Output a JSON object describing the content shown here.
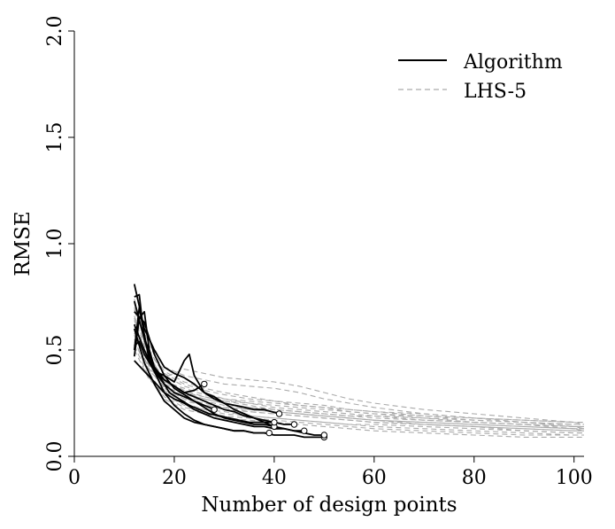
{
  "chart_data": {
    "type": "line",
    "title": "",
    "xlabel": "Number of design points",
    "ylabel": "RMSE",
    "xlim": [
      0,
      102
    ],
    "ylim": [
      0,
      2.0
    ],
    "x_ticks": [
      0,
      20,
      40,
      60,
      80,
      100
    ],
    "x_tick_labels": [
      "0",
      "20",
      "40",
      "60",
      "80",
      "100"
    ],
    "y_ticks": [
      0.0,
      0.5,
      1.0,
      1.5,
      2.0
    ],
    "y_tick_labels": [
      "0.0",
      "0.5",
      "1.0",
      "1.5",
      "2.0"
    ],
    "grid": false,
    "legend_position": "top-right",
    "legend": [
      {
        "label": "Algorithm",
        "color": "#000000",
        "style": "solid"
      },
      {
        "label": "LHS-5",
        "color": "#aaaaaa",
        "style": "dashed"
      }
    ],
    "series": [
      {
        "name": "LHS-5",
        "group": "lhs",
        "x": [
          12,
          15,
          18,
          22,
          26,
          30,
          35,
          40,
          45,
          50,
          55,
          60,
          70,
          80,
          90,
          100,
          102
        ],
        "y": [
          0.74,
          0.45,
          0.32,
          0.27,
          0.24,
          0.22,
          0.21,
          0.2,
          0.19,
          0.18,
          0.17,
          0.16,
          0.15,
          0.14,
          0.13,
          0.12,
          0.12
        ]
      },
      {
        "name": "LHS-5",
        "group": "lhs",
        "x": [
          12,
          15,
          18,
          22,
          26,
          30,
          35,
          40,
          45,
          50,
          55,
          60,
          70,
          80,
          90,
          100,
          102
        ],
        "y": [
          0.7,
          0.5,
          0.38,
          0.33,
          0.3,
          0.27,
          0.25,
          0.23,
          0.22,
          0.21,
          0.2,
          0.19,
          0.18,
          0.16,
          0.15,
          0.14,
          0.14
        ]
      },
      {
        "name": "LHS-5",
        "group": "lhs",
        "x": [
          12,
          15,
          18,
          22,
          26,
          30,
          35,
          40,
          45,
          50,
          55,
          60,
          70,
          80,
          90,
          100,
          102
        ],
        "y": [
          0.6,
          0.42,
          0.33,
          0.28,
          0.26,
          0.24,
          0.22,
          0.21,
          0.2,
          0.19,
          0.18,
          0.17,
          0.16,
          0.15,
          0.14,
          0.13,
          0.13
        ]
      },
      {
        "name": "LHS-5",
        "group": "lhs",
        "x": [
          12,
          15,
          18,
          22,
          26,
          30,
          35,
          40,
          45,
          50,
          55,
          60,
          70,
          80,
          90,
          100,
          102
        ],
        "y": [
          0.68,
          0.55,
          0.42,
          0.38,
          0.36,
          0.34,
          0.33,
          0.32,
          0.3,
          0.27,
          0.25,
          0.23,
          0.2,
          0.18,
          0.16,
          0.15,
          0.15
        ]
      },
      {
        "name": "LHS-5",
        "group": "lhs",
        "x": [
          12,
          15,
          18,
          22,
          26,
          30,
          35,
          40,
          45,
          50,
          55,
          60,
          70,
          80,
          90,
          100,
          102
        ],
        "y": [
          0.55,
          0.38,
          0.28,
          0.23,
          0.21,
          0.19,
          0.18,
          0.17,
          0.16,
          0.15,
          0.14,
          0.13,
          0.12,
          0.11,
          0.1,
          0.1,
          0.1
        ]
      },
      {
        "name": "LHS-5",
        "group": "lhs",
        "x": [
          12,
          15,
          18,
          22,
          26,
          30,
          35,
          40,
          45,
          50,
          55,
          60,
          70,
          80,
          90,
          100,
          102
        ],
        "y": [
          0.72,
          0.48,
          0.35,
          0.3,
          0.27,
          0.25,
          0.23,
          0.22,
          0.21,
          0.2,
          0.19,
          0.18,
          0.17,
          0.16,
          0.15,
          0.13,
          0.13
        ]
      },
      {
        "name": "LHS-5",
        "group": "lhs",
        "x": [
          12,
          15,
          18,
          22,
          26,
          30,
          35,
          40,
          45,
          50,
          55,
          60,
          70,
          80,
          90,
          100,
          102
        ],
        "y": [
          0.5,
          0.36,
          0.3,
          0.26,
          0.24,
          0.23,
          0.21,
          0.2,
          0.19,
          0.18,
          0.17,
          0.16,
          0.15,
          0.14,
          0.12,
          0.11,
          0.11
        ]
      },
      {
        "name": "LHS-5",
        "group": "lhs",
        "x": [
          12,
          15,
          18,
          22,
          26,
          30,
          35,
          40,
          45,
          50,
          55,
          60,
          70,
          80,
          90,
          100,
          102
        ],
        "y": [
          0.65,
          0.46,
          0.37,
          0.41,
          0.39,
          0.37,
          0.36,
          0.35,
          0.33,
          0.3,
          0.27,
          0.25,
          0.22,
          0.2,
          0.18,
          0.16,
          0.16
        ]
      },
      {
        "name": "LHS-5",
        "group": "lhs",
        "x": [
          12,
          15,
          18,
          22,
          26,
          30,
          35,
          40,
          45,
          50,
          55,
          60,
          70,
          80,
          90,
          100,
          102
        ],
        "y": [
          0.62,
          0.44,
          0.31,
          0.25,
          0.22,
          0.2,
          0.19,
          0.18,
          0.17,
          0.16,
          0.15,
          0.14,
          0.13,
          0.12,
          0.11,
          0.1,
          0.1
        ]
      },
      {
        "name": "LHS-5",
        "group": "lhs",
        "x": [
          12,
          15,
          18,
          22,
          26,
          30,
          35,
          40,
          45,
          50,
          55,
          60,
          70,
          80,
          90,
          100,
          102
        ],
        "y": [
          0.58,
          0.4,
          0.34,
          0.3,
          0.28,
          0.26,
          0.24,
          0.22,
          0.21,
          0.2,
          0.19,
          0.19,
          0.17,
          0.16,
          0.15,
          0.14,
          0.13
        ]
      },
      {
        "name": "LHS-5",
        "group": "lhs",
        "x": [
          12,
          15,
          18,
          22,
          26,
          30,
          35,
          40,
          45,
          50,
          55,
          60,
          70,
          80,
          90,
          100,
          102
        ],
        "y": [
          0.66,
          0.47,
          0.36,
          0.31,
          0.28,
          0.26,
          0.25,
          0.24,
          0.23,
          0.22,
          0.21,
          0.2,
          0.19,
          0.17,
          0.16,
          0.15,
          0.15
        ]
      },
      {
        "name": "LHS-5",
        "group": "lhs",
        "x": [
          12,
          15,
          18,
          22,
          26,
          30,
          35,
          40,
          45,
          50,
          55,
          60,
          70,
          80,
          90,
          100,
          102
        ],
        "y": [
          0.52,
          0.37,
          0.27,
          0.22,
          0.2,
          0.18,
          0.17,
          0.16,
          0.15,
          0.14,
          0.13,
          0.12,
          0.11,
          0.1,
          0.09,
          0.09,
          0.09
        ]
      },
      {
        "name": "LHS-5",
        "group": "lhs",
        "x": [
          12,
          15,
          18,
          22,
          26,
          30,
          35,
          40,
          45,
          50,
          55,
          60,
          70,
          80,
          90,
          100,
          102
        ],
        "y": [
          0.73,
          0.52,
          0.4,
          0.35,
          0.32,
          0.3,
          0.28,
          0.26,
          0.25,
          0.24,
          0.22,
          0.21,
          0.19,
          0.18,
          0.17,
          0.16,
          0.16
        ]
      },
      {
        "name": "LHS-5",
        "group": "lhs",
        "x": [
          12,
          15,
          18,
          22,
          26,
          30,
          35,
          40,
          45,
          50,
          55,
          60,
          70,
          80,
          90,
          100,
          102
        ],
        "y": [
          0.57,
          0.41,
          0.32,
          0.27,
          0.25,
          0.23,
          0.22,
          0.21,
          0.2,
          0.19,
          0.18,
          0.17,
          0.16,
          0.15,
          0.14,
          0.13,
          0.12
        ]
      },
      {
        "name": "LHS-5",
        "group": "lhs",
        "x": [
          12,
          15,
          18,
          22,
          26,
          30,
          35,
          40,
          45,
          50,
          55,
          60,
          70,
          80,
          90,
          100,
          102
        ],
        "y": [
          0.64,
          0.43,
          0.33,
          0.29,
          0.27,
          0.25,
          0.23,
          0.21,
          0.2,
          0.19,
          0.18,
          0.17,
          0.15,
          0.14,
          0.13,
          0.12,
          0.12
        ]
      },
      {
        "name": "LHS-5",
        "group": "lhs",
        "x": [
          12,
          15,
          18,
          22,
          26,
          30,
          35,
          40,
          45,
          50,
          55,
          60,
          70,
          80,
          90,
          100,
          102
        ],
        "y": [
          0.69,
          0.49,
          0.39,
          0.34,
          0.31,
          0.29,
          0.27,
          0.26,
          0.24,
          0.23,
          0.22,
          0.21,
          0.2,
          0.18,
          0.17,
          0.16,
          0.15
        ]
      },
      {
        "name": "LHS-5",
        "group": "lhs",
        "x": [
          12,
          15,
          18,
          22,
          26,
          30,
          35,
          40,
          45,
          50,
          55,
          60,
          70,
          80,
          90,
          100,
          102
        ],
        "y": [
          0.54,
          0.39,
          0.29,
          0.24,
          0.22,
          0.21,
          0.19,
          0.18,
          0.17,
          0.16,
          0.15,
          0.15,
          0.14,
          0.13,
          0.12,
          0.11,
          0.11
        ]
      },
      {
        "name": "LHS-5",
        "group": "lhs",
        "x": [
          12,
          15,
          18,
          22,
          26,
          30,
          35,
          40,
          45,
          50,
          55,
          60,
          70,
          80,
          90,
          100,
          102
        ],
        "y": [
          0.61,
          0.45,
          0.35,
          0.32,
          0.29,
          0.27,
          0.26,
          0.25,
          0.24,
          0.23,
          0.21,
          0.2,
          0.18,
          0.17,
          0.16,
          0.14,
          0.14
        ]
      },
      {
        "name": "Algorithm",
        "group": "alg",
        "x": [
          12,
          13,
          14,
          15,
          16,
          18,
          20,
          22,
          24,
          26
        ],
        "y": [
          0.75,
          0.76,
          0.55,
          0.5,
          0.42,
          0.36,
          0.33,
          0.3,
          0.31,
          0.34
        ]
      },
      {
        "name": "Algorithm",
        "group": "alg",
        "x": [
          12,
          14,
          16,
          18,
          20,
          22,
          24,
          26,
          28,
          30,
          32,
          34,
          36,
          38,
          41
        ],
        "y": [
          0.81,
          0.6,
          0.5,
          0.42,
          0.39,
          0.37,
          0.34,
          0.3,
          0.27,
          0.25,
          0.24,
          0.23,
          0.22,
          0.22,
          0.2
        ]
      },
      {
        "name": "Algorithm",
        "group": "alg",
        "x": [
          12,
          13,
          14,
          16,
          18,
          20,
          22,
          24,
          26,
          28,
          30,
          32,
          34,
          36,
          38,
          40,
          42,
          44
        ],
        "y": [
          0.52,
          0.54,
          0.48,
          0.4,
          0.36,
          0.33,
          0.3,
          0.28,
          0.26,
          0.24,
          0.22,
          0.21,
          0.19,
          0.18,
          0.17,
          0.16,
          0.15,
          0.15
        ]
      },
      {
        "name": "Algorithm",
        "group": "alg",
        "x": [
          12,
          14,
          16,
          18,
          20,
          22,
          24,
          26,
          28,
          30,
          32,
          34,
          36,
          38,
          40,
          42,
          44,
          46
        ],
        "y": [
          0.45,
          0.4,
          0.35,
          0.3,
          0.27,
          0.25,
          0.22,
          0.2,
          0.18,
          0.17,
          0.16,
          0.15,
          0.14,
          0.14,
          0.13,
          0.13,
          0.12,
          0.12
        ]
      },
      {
        "name": "Algorithm",
        "group": "alg",
        "x": [
          12,
          14,
          16,
          18,
          20,
          22,
          24,
          26,
          28,
          30,
          32,
          34,
          36,
          38,
          40
        ],
        "y": [
          0.68,
          0.63,
          0.48,
          0.38,
          0.32,
          0.29,
          0.26,
          0.23,
          0.2,
          0.18,
          0.17,
          0.16,
          0.15,
          0.15,
          0.14
        ]
      },
      {
        "name": "Algorithm",
        "group": "alg",
        "x": [
          12,
          14,
          16,
          18,
          20,
          22,
          24,
          26,
          28,
          30,
          32,
          34,
          36,
          38,
          39
        ],
        "y": [
          0.6,
          0.44,
          0.34,
          0.26,
          0.22,
          0.18,
          0.16,
          0.15,
          0.14,
          0.13,
          0.12,
          0.12,
          0.11,
          0.11,
          0.11
        ]
      },
      {
        "name": "Algorithm",
        "group": "alg",
        "x": [
          12,
          14,
          16,
          18,
          20,
          22,
          24,
          26,
          28,
          30,
          32,
          34,
          36,
          38,
          40,
          42,
          44,
          46,
          48,
          50
        ],
        "y": [
          0.73,
          0.55,
          0.4,
          0.3,
          0.24,
          0.2,
          0.17,
          0.15,
          0.14,
          0.13,
          0.12,
          0.12,
          0.11,
          0.11,
          0.1,
          0.1,
          0.1,
          0.09,
          0.09,
          0.09
        ]
      },
      {
        "name": "Algorithm",
        "group": "alg",
        "x": [
          12,
          13,
          15,
          17,
          19,
          21,
          23,
          25,
          27,
          29,
          31,
          33,
          35,
          37,
          40
        ],
        "y": [
          0.5,
          0.7,
          0.45,
          0.38,
          0.3,
          0.27,
          0.24,
          0.22,
          0.2,
          0.19,
          0.18,
          0.17,
          0.16,
          0.16,
          0.16
        ]
      },
      {
        "name": "Algorithm",
        "group": "alg",
        "x": [
          12,
          13,
          14,
          15,
          16,
          18,
          20,
          22,
          23,
          24,
          26,
          28,
          30,
          32,
          34,
          36,
          38,
          40,
          42,
          44,
          46,
          48,
          50
        ],
        "y": [
          0.47,
          0.65,
          0.68,
          0.5,
          0.4,
          0.38,
          0.35,
          0.45,
          0.48,
          0.38,
          0.3,
          0.28,
          0.25,
          0.22,
          0.2,
          0.18,
          0.16,
          0.14,
          0.13,
          0.12,
          0.11,
          0.1,
          0.1
        ]
      },
      {
        "name": "Algorithm",
        "group": "alg",
        "x": [
          12,
          14,
          16,
          18,
          20,
          22,
          24,
          26,
          28
        ],
        "y": [
          0.62,
          0.5,
          0.4,
          0.34,
          0.3,
          0.28,
          0.26,
          0.24,
          0.22
        ]
      }
    ]
  }
}
